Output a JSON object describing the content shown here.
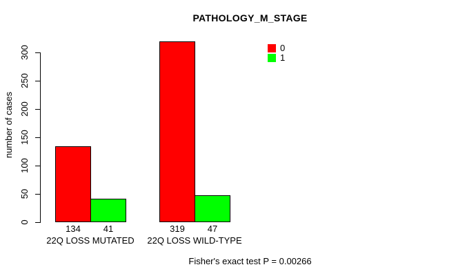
{
  "title": "PATHOLOGY_M_STAGE",
  "subtitle": "Fisher's exact test P = 0.00266",
  "ylabel": "number of cases",
  "chart_data": {
    "type": "bar",
    "title": "PATHOLOGY_M_STAGE",
    "categories": [
      "22Q LOSS MUTATED",
      "22Q LOSS WILD-TYPE"
    ],
    "series": [
      {
        "name": "0",
        "color": "#FF0000",
        "values": [
          134,
          319
        ]
      },
      {
        "name": "1",
        "color": "#00FF00",
        "values": [
          41,
          47
        ]
      }
    ],
    "xlabel": "",
    "ylabel": "number of cases",
    "yticks": [
      0,
      50,
      100,
      150,
      200,
      250,
      300
    ],
    "ylim": [
      0,
      320
    ],
    "bar_value_labels": [
      [
        134,
        319
      ],
      [
        41,
        47
      ]
    ],
    "annotation": "Fisher's exact test P = 0.00266",
    "legend": [
      {
        "label": "0",
        "color": "#FF0000"
      },
      {
        "label": "1",
        "color": "#00FF00"
      }
    ],
    "legend_position": "top-right",
    "grid": false,
    "background": "#ffffff",
    "bar_border_color": "#000000"
  }
}
